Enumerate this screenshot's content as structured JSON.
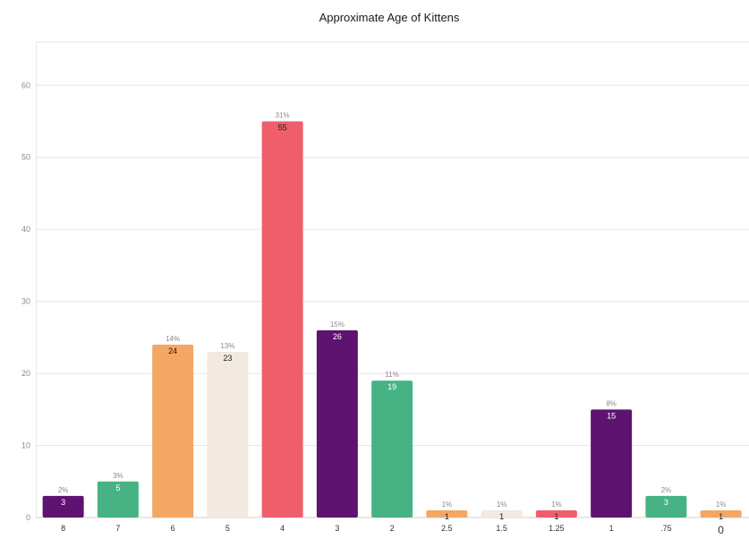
{
  "chart_data": {
    "type": "bar",
    "title": "Approximate Age of Kittens",
    "xlabel": "",
    "ylabel": "",
    "ylim": [
      0,
      66
    ],
    "yticks": [
      0,
      10,
      20,
      30,
      40,
      50,
      60
    ],
    "grid": true,
    "categories": [
      "8",
      "7",
      "6",
      "5",
      "4",
      "3",
      "2",
      "2.5",
      "1.5",
      "1.25",
      "1",
      ".75",
      "0"
    ],
    "values": [
      3,
      5,
      24,
      23,
      55,
      26,
      19,
      1,
      1,
      1,
      15,
      3,
      1
    ],
    "percent_labels": [
      "2%",
      "3%",
      "14%",
      "13%",
      "31%",
      "15%",
      "11%",
      "1%",
      "1%",
      "1%",
      "8%",
      "2%",
      "1%"
    ],
    "colors": [
      "#5e1370",
      "#47b384",
      "#f4a765",
      "#f2e9e1",
      "#f05e6c",
      "#5e1370",
      "#47b384",
      "#f4a765",
      "#f2e9e1",
      "#f05e6c",
      "#5e1370",
      "#47b384",
      "#f4a765"
    ],
    "value_label_colors": [
      "#ffffff",
      "#ffffff",
      "#1a1a1a",
      "#1a1a1a",
      "#1a1a1a",
      "#ffffff",
      "#ffffff",
      "#1a1a1a",
      "#1a1a1a",
      "#1a1a1a",
      "#ffffff",
      "#ffffff",
      "#1a1a1a"
    ]
  }
}
